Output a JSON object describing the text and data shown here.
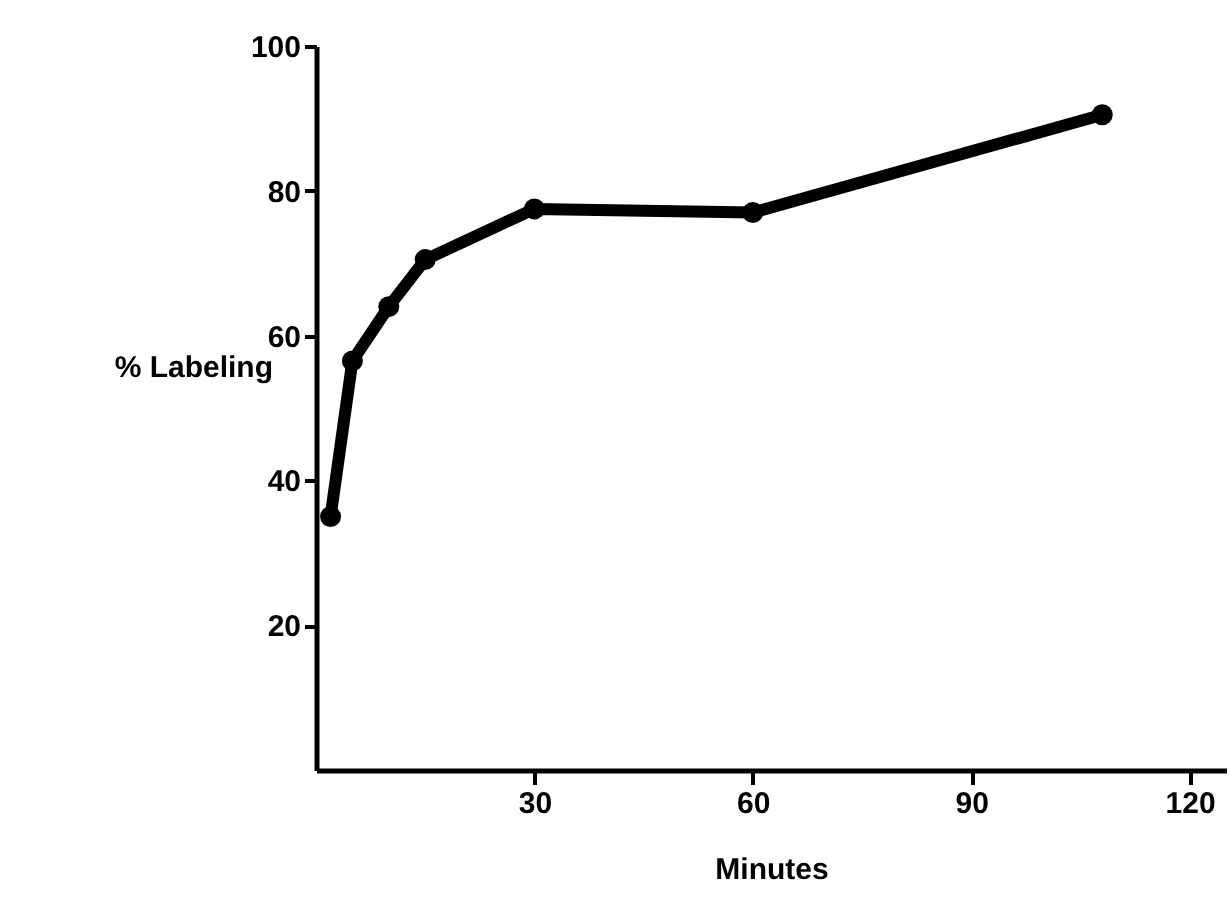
{
  "chart_data": {
    "type": "line",
    "xlabel": "Minutes",
    "ylabel": "% Labeling",
    "x": [
      2,
      5,
      10,
      15,
      30,
      60,
      108
    ],
    "series": [
      {
        "color": "#000000",
        "values": [
          35,
          56.5,
          64,
          70.5,
          77.5,
          77,
          90.5
        ]
      }
    ],
    "xlim": [
      0,
      125
    ],
    "xticks": [
      30,
      60,
      90,
      120
    ],
    "ylim": [
      0,
      100
    ],
    "yticks": [
      20,
      40,
      60,
      80,
      100
    ],
    "grid": false,
    "legend": false,
    "marker": "circle",
    "line_style": "solid"
  }
}
